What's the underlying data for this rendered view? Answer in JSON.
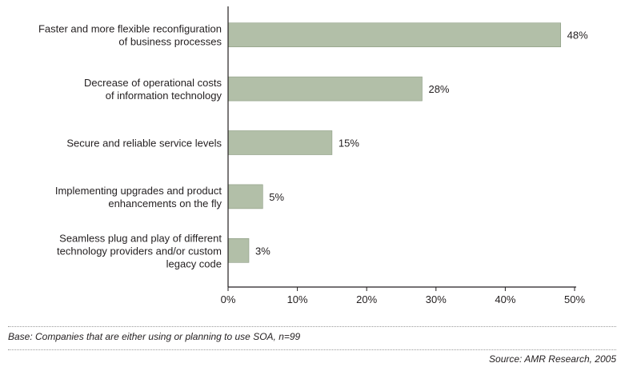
{
  "chart_data": {
    "type": "bar",
    "orientation": "horizontal",
    "categories": [
      [
        "Faster and more flexible reconfiguration",
        "of business processes"
      ],
      [
        "Decrease of operational costs",
        "of information technology"
      ],
      [
        "Secure and reliable service levels"
      ],
      [
        "Implementing upgrades and product",
        "enhancements on the fly"
      ],
      [
        "Seamless plug and play of different",
        "technology providers and/or custom",
        "legacy code"
      ]
    ],
    "values": [
      48,
      28,
      15,
      5,
      3
    ],
    "value_labels": [
      "48%",
      "28%",
      "15%",
      "5%",
      "3%"
    ],
    "xlim": [
      0,
      50
    ],
    "xticks": [
      0,
      10,
      20,
      30,
      40,
      50
    ],
    "xtick_labels": [
      "0%",
      "10%",
      "20%",
      "30%",
      "40%",
      "50%"
    ],
    "grid": false,
    "bar_color": "#b2bfa8",
    "bar_edge_color": "#8a9a80"
  },
  "footnote": "Base: Companies that are either using or planning to use SOA, n=99",
  "source": "Source: AMR Research, 2005"
}
